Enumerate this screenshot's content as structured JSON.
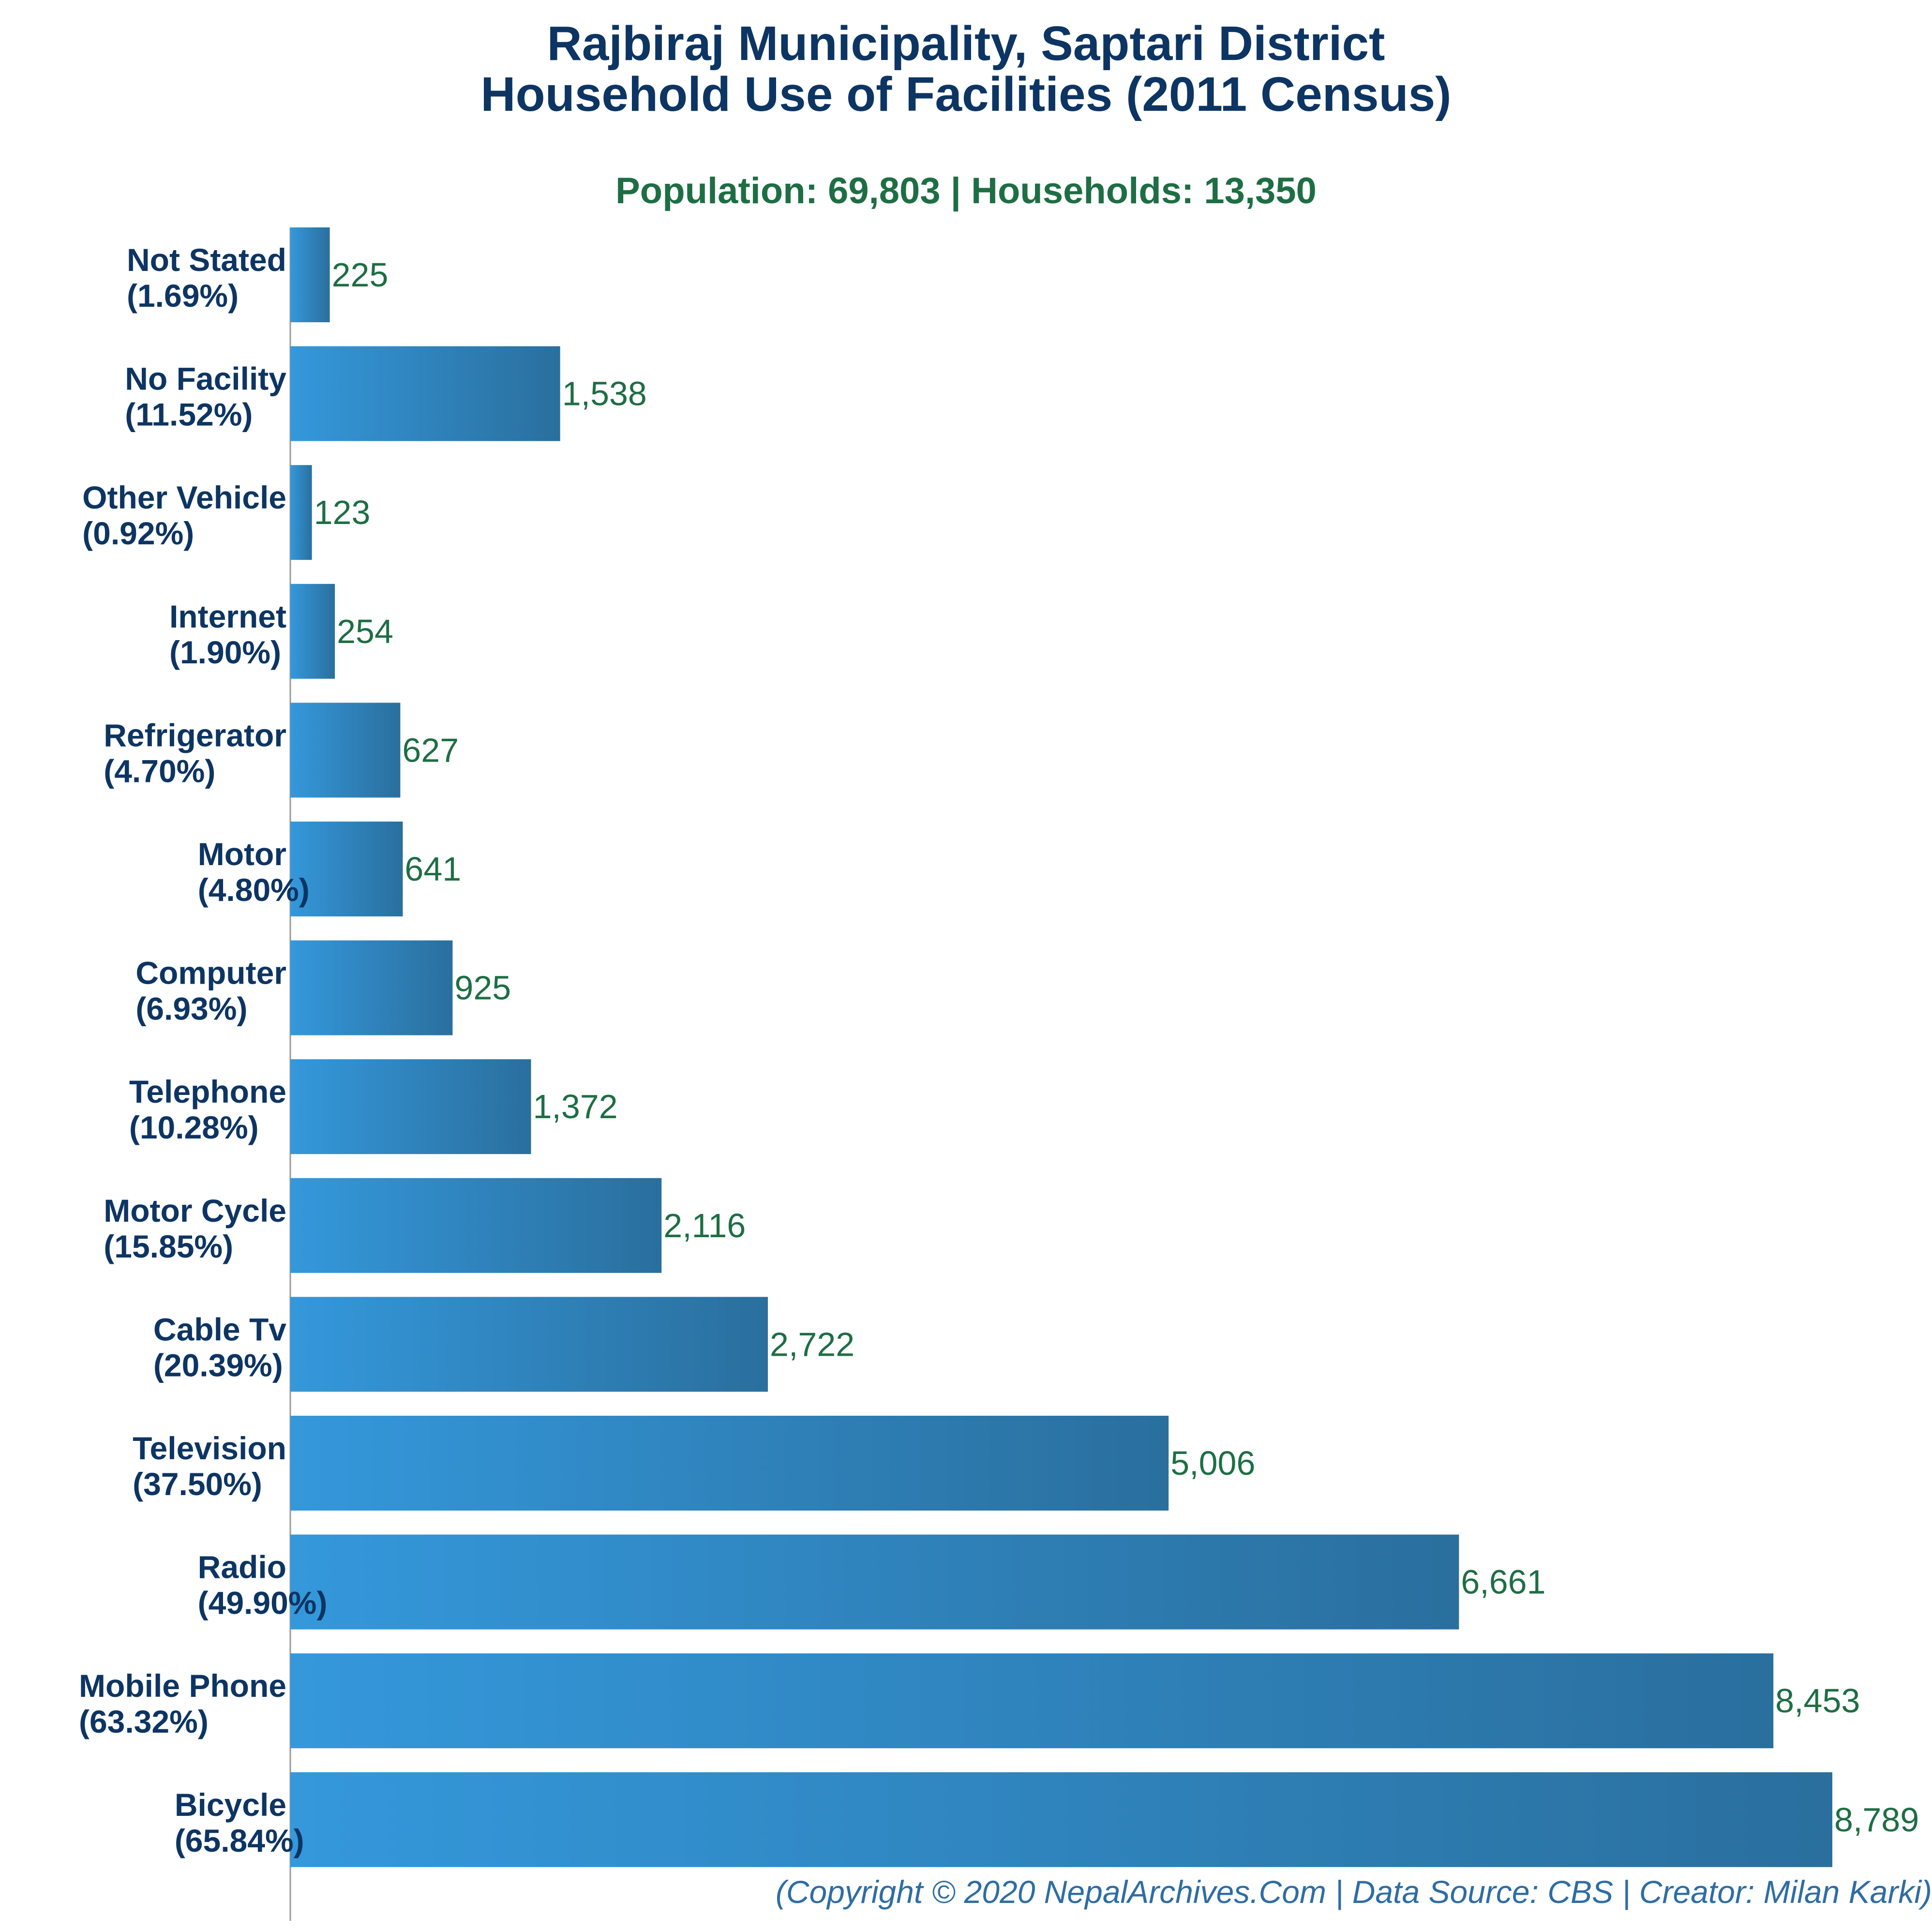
{
  "title_line1": "Rajbiraj Municipality, Saptari District",
  "title_line2": "Household Use of Facilities (2011 Census)",
  "subtitle": "Population: 69,803 | Households: 13,350",
  "footer": "(Copyright © 2020 NepalArchives.Com | Data Source: CBS | Creator: Milan Karki)",
  "colors": {
    "title": "#0d3563",
    "value_label": "#1e6e44",
    "bar_light": "#3498db",
    "bar_dark": "#2a6f9e",
    "footer": "#2e6da4"
  },
  "chart_data": {
    "type": "bar",
    "orientation": "horizontal",
    "title": "Rajbiraj Municipality, Saptari District Household Use of Facilities (2011 Census)",
    "subtitle": "Population: 69,803 | Households: 13,350",
    "xlim": [
      0,
      8789
    ],
    "grid": false,
    "legend": "none",
    "categories": [
      "Not Stated",
      "No Facility",
      "Other Vehicle",
      "Internet",
      "Refrigerator",
      "Motor",
      "Computer",
      "Telephone",
      "Motor Cycle",
      "Cable Tv",
      "Television",
      "Radio",
      "Mobile Phone",
      "Bicycle"
    ],
    "percent_labels": [
      "(1.69%)",
      "(11.52%)",
      "(0.92%)",
      "(1.90%)",
      "(4.70%)",
      "(4.80%)",
      "(6.93%)",
      "(10.28%)",
      "(15.85%)",
      "(20.39%)",
      "(37.50%)",
      "(49.90%)",
      "(63.32%)",
      "(65.84%)"
    ],
    "values": [
      225,
      1538,
      123,
      254,
      627,
      641,
      925,
      1372,
      2116,
      2722,
      5006,
      6661,
      8453,
      8789
    ],
    "value_labels": [
      "225",
      "1,538",
      "123",
      "254",
      "627",
      "641",
      "925",
      "1,372",
      "2,116",
      "2,722",
      "5,006",
      "6,661",
      "8,453",
      "8,789"
    ]
  }
}
